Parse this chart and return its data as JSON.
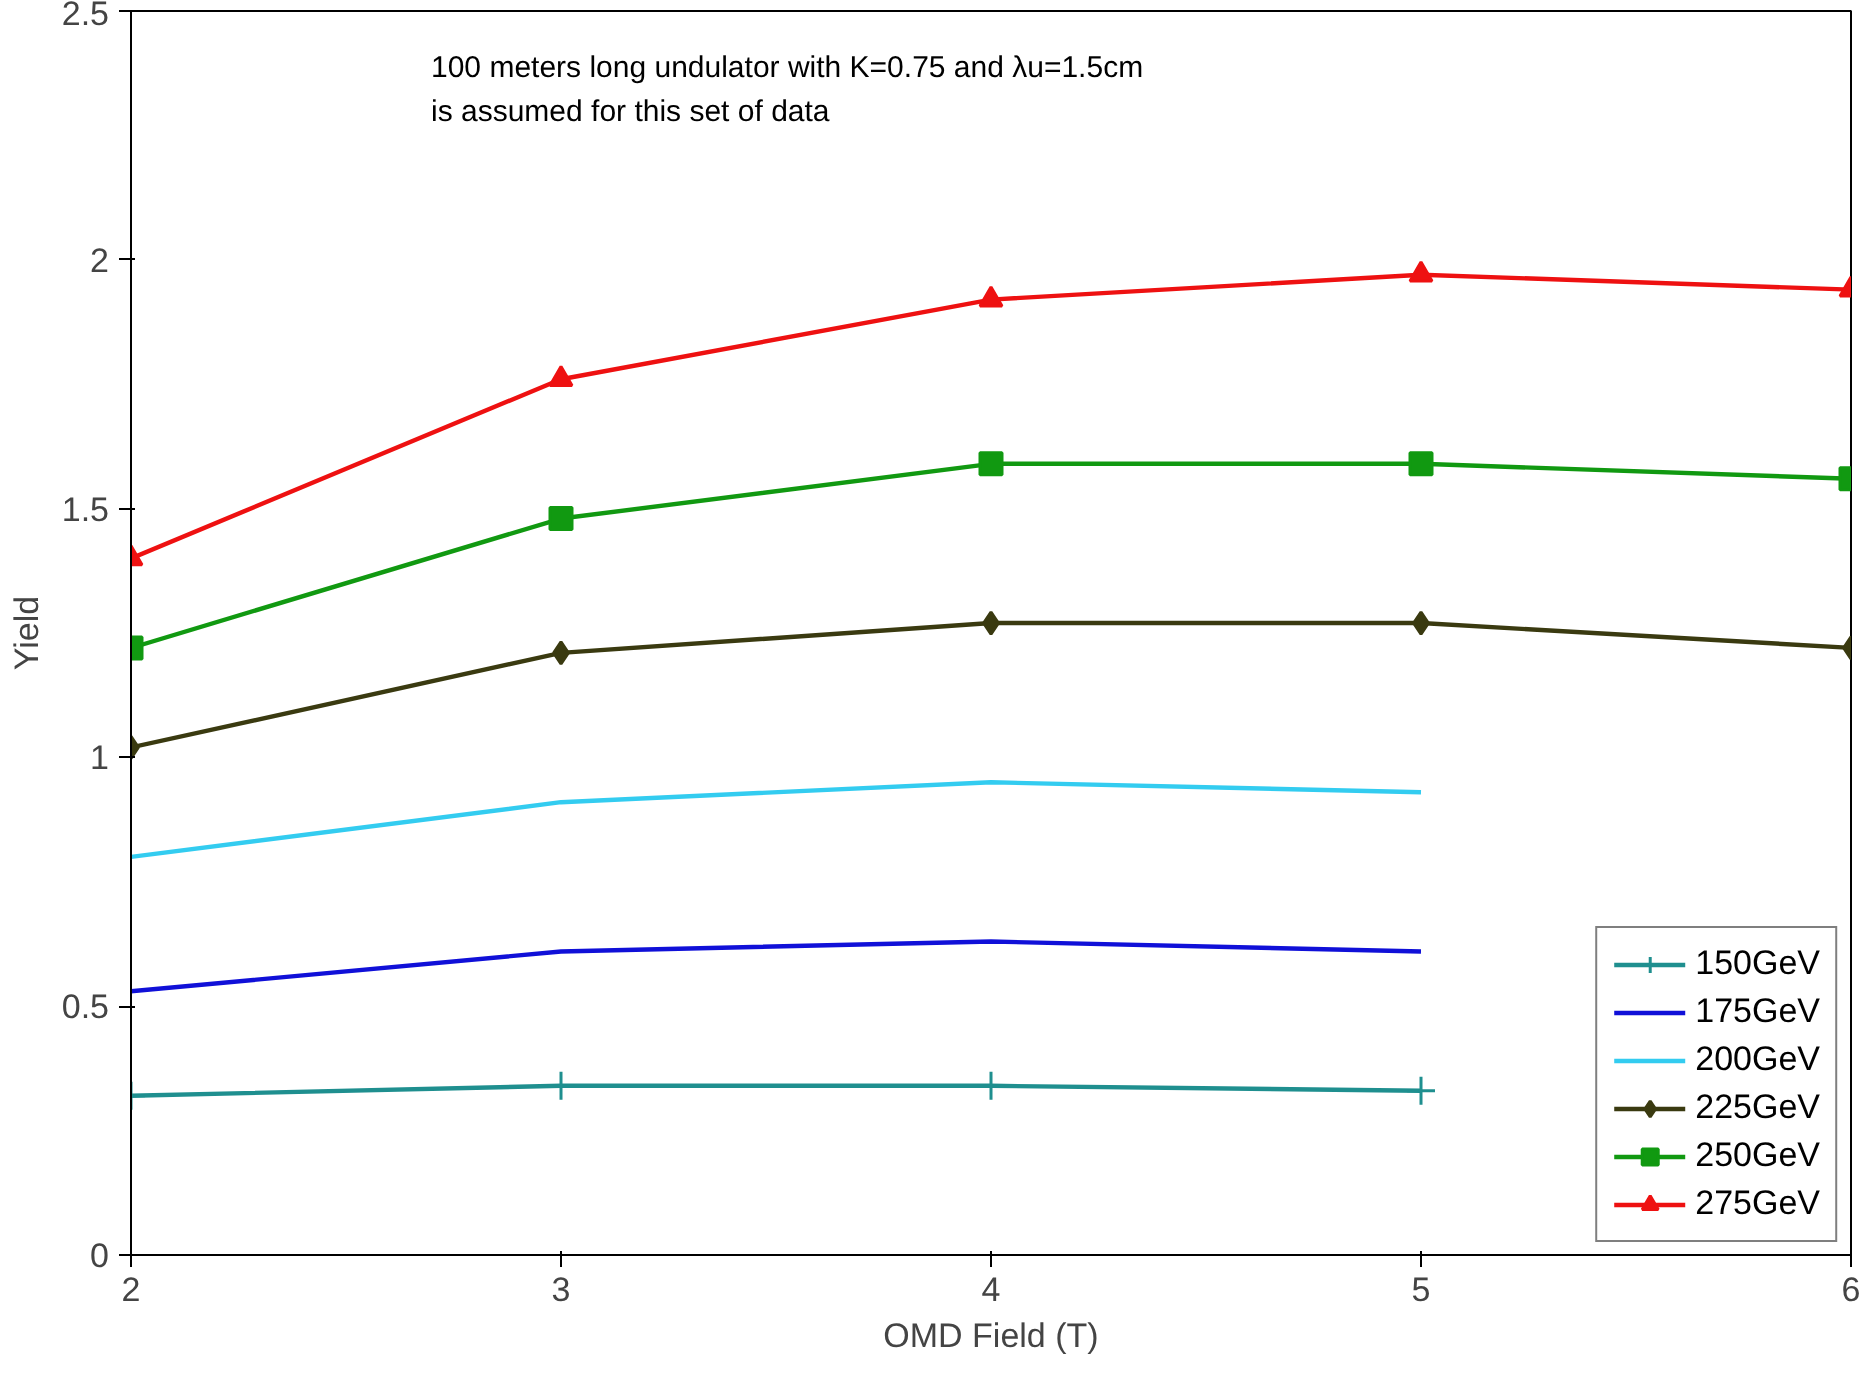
{
  "chart_data": {
    "type": "line",
    "xlabel": "OMD Field (T)",
    "ylabel": "Yield",
    "annotations": [
      "100 meters long undulator with K=0.75 and λu=1.5cm",
      "is assumed for this set of data"
    ],
    "x": [
      2,
      3,
      4,
      5,
      6
    ],
    "xlim": [
      2,
      6
    ],
    "xticks": [
      2,
      3,
      4,
      5,
      6
    ],
    "ylim": [
      0,
      2.5
    ],
    "yticks": [
      0,
      0.5,
      1,
      1.5,
      2,
      2.5
    ],
    "grid": false,
    "legend": "right",
    "series": [
      {
        "name": "150GeV",
        "color": "#1f8f8f",
        "marker": "cross",
        "values": [
          0.32,
          0.34,
          0.34,
          0.33,
          null
        ]
      },
      {
        "name": "175GeV",
        "color": "#1010d8",
        "marker": "none",
        "values": [
          0.53,
          0.61,
          0.63,
          0.61,
          null
        ]
      },
      {
        "name": "200GeV",
        "color": "#33ccf0",
        "marker": "none",
        "values": [
          0.8,
          0.91,
          0.95,
          0.93,
          null
        ]
      },
      {
        "name": "225GeV",
        "color": "#3a3a10",
        "marker": "diamond",
        "values": [
          1.02,
          1.21,
          1.27,
          1.27,
          1.22
        ]
      },
      {
        "name": "250GeV",
        "color": "#119911",
        "marker": "square",
        "values": [
          1.22,
          1.48,
          1.59,
          1.59,
          1.56
        ]
      },
      {
        "name": "275GeV",
        "color": "#ee1111",
        "marker": "triangle",
        "values": [
          1.4,
          1.76,
          1.92,
          1.97,
          1.94
        ]
      }
    ]
  }
}
